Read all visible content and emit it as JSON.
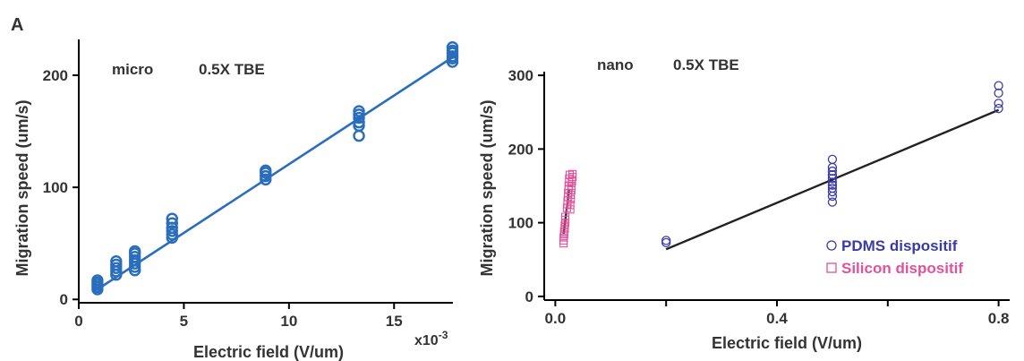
{
  "panel_label": "A",
  "chart_data": [
    {
      "type": "scatter",
      "annotations": [
        "micro",
        "0.5X TBE"
      ],
      "xlabel": "Electric field (V/um)",
      "ylabel": "Migration speed (um/s)",
      "x_multiplier_label": "x10",
      "x_multiplier_exponent": "-3",
      "xlim": [
        0,
        0.0178
      ],
      "ylim": [
        -3,
        232
      ],
      "xticks": [
        0.0,
        0.005,
        0.01,
        0.015
      ],
      "xtick_labels": [
        "0",
        "5",
        "10",
        "15"
      ],
      "yticks": [
        0,
        100,
        200
      ],
      "ytick_labels": [
        "0",
        "100",
        "200"
      ],
      "grid": false,
      "color": "#2a6ebb",
      "series": [
        {
          "marker": "circle",
          "color": "#2a6ebb",
          "x": [
            0.00089,
            0.00089,
            0.00089,
            0.00089,
            0.00089,
            0.00178,
            0.00178,
            0.00178,
            0.00178,
            0.00178,
            0.00267,
            0.00267,
            0.00267,
            0.00267,
            0.00267,
            0.00267,
            0.00267,
            0.00444,
            0.00444,
            0.00444,
            0.00444,
            0.00444,
            0.00444,
            0.00889,
            0.00889,
            0.00889,
            0.00889,
            0.01333,
            0.01333,
            0.01333,
            0.01333,
            0.01333,
            0.01333,
            0.01778,
            0.01778,
            0.01778,
            0.01778,
            0.01778,
            0.01778
          ],
          "y": [
            9,
            11,
            13,
            15,
            17,
            22,
            25,
            28,
            31,
            34,
            26,
            29,
            32,
            35,
            38,
            41,
            43,
            55,
            58,
            61,
            64,
            68,
            72,
            107,
            110,
            113,
            115,
            146,
            155,
            158,
            162,
            165,
            168,
            212,
            215,
            217,
            220,
            222,
            225
          ]
        }
      ],
      "fit_line": {
        "x": [
          0.00089,
          0.01778
        ],
        "y": [
          9,
          216
        ]
      }
    },
    {
      "type": "scatter",
      "annotations": [
        "nano",
        "0.5X TBE"
      ],
      "xlabel": "Electric field (V/um)",
      "ylabel": "Migration speed (um/s)",
      "xlim": [
        -0.02,
        0.82
      ],
      "ylim": [
        -5,
        305
      ],
      "xticks": [
        0.0,
        0.2,
        0.4,
        0.6,
        0.8
      ],
      "xtick_labels": [
        "0.0",
        "",
        "0.4",
        "",
        "0.8"
      ],
      "yticks": [
        0,
        100,
        200,
        300
      ],
      "ytick_labels": [
        "0",
        "100",
        "200",
        "300"
      ],
      "grid": false,
      "legend_position": "bottom-right",
      "series": [
        {
          "name": "PDMS dispositif",
          "marker": "circle",
          "color": "#3a3aa8",
          "x": [
            0.2,
            0.2,
            0.5,
            0.5,
            0.5,
            0.5,
            0.5,
            0.5,
            0.5,
            0.5,
            0.5,
            0.5,
            0.5,
            0.5,
            0.8,
            0.8,
            0.8,
            0.8
          ],
          "y": [
            73,
            76,
            128,
            136,
            142,
            147,
            151,
            155,
            160,
            165,
            170,
            175,
            186,
            165,
            255,
            262,
            276,
            286
          ]
        },
        {
          "name": "Silicon dispositif",
          "marker": "square",
          "color": "#e0529c",
          "x": [
            0.015,
            0.015,
            0.015,
            0.016,
            0.016,
            0.017,
            0.017,
            0.018,
            0.018,
            0.018,
            0.021,
            0.022,
            0.022,
            0.023,
            0.023,
            0.024,
            0.024,
            0.025,
            0.025,
            0.026,
            0.027,
            0.027,
            0.028,
            0.028,
            0.029,
            0.029,
            0.03,
            0.03,
            0.031,
            0.031
          ],
          "y": [
            72,
            76,
            80,
            84,
            88,
            92,
            96,
            100,
            104,
            108,
            120,
            125,
            130,
            135,
            140,
            145,
            150,
            155,
            160,
            165,
            118,
            124,
            132,
            138,
            144,
            150,
            156,
            158,
            162,
            166
          ]
        }
      ],
      "fit_lines": [
        {
          "x": [
            0.2,
            0.8
          ],
          "y": [
            64,
            253
          ],
          "color": "#222222"
        },
        {
          "x": [
            0.015,
            0.025
          ],
          "y": [
            85,
            146
          ],
          "color": "#222222"
        }
      ]
    }
  ]
}
